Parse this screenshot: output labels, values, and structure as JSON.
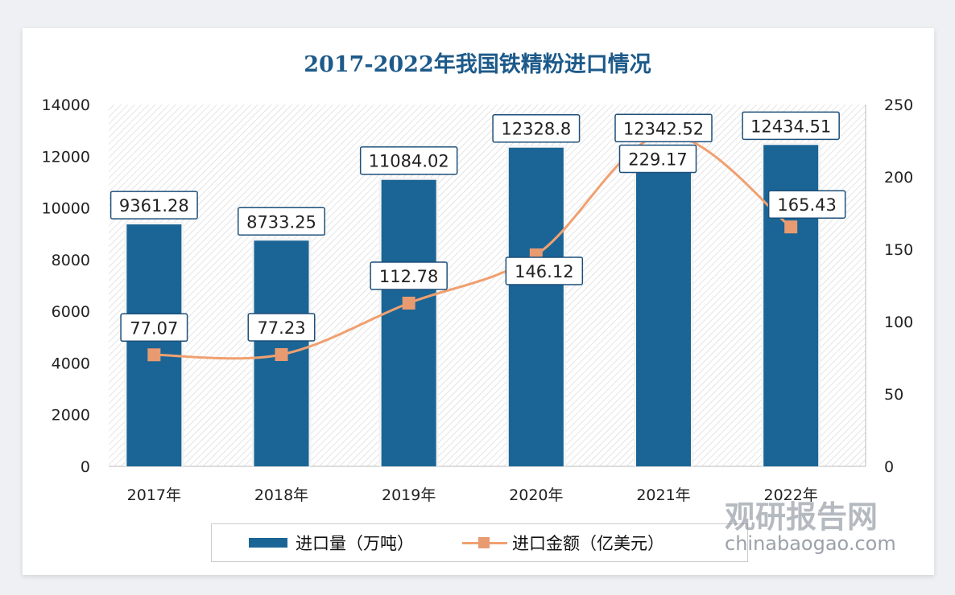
{
  "chart_data": {
    "type": "bar+line",
    "title": "2017-2022年我国铁精粉进口情况",
    "categories": [
      "2017年",
      "2018年",
      "2019年",
      "2020年",
      "2021年",
      "2022年"
    ],
    "series": [
      {
        "name": "进口量（万吨）",
        "type": "bar",
        "axis": "left",
        "values": [
          9361.28,
          8733.25,
          11084.02,
          12328.8,
          12342.52,
          12434.51
        ],
        "labels": [
          "9361.28",
          "8733.25",
          "11084.02",
          "12328.8",
          "12342.52",
          "12434.51"
        ]
      },
      {
        "name": "进口金额（亿美元）",
        "type": "line",
        "axis": "right",
        "values": [
          77.07,
          77.23,
          112.78,
          146.12,
          229.17,
          165.43
        ],
        "labels": [
          "77.07",
          "77.23",
          "112.78",
          "146.12",
          "229.17",
          "165.43"
        ]
      }
    ],
    "y_left": {
      "range": [
        0,
        14000
      ],
      "ticks": [
        "0",
        "2000",
        "4000",
        "6000",
        "8000",
        "10000",
        "12000",
        "14000"
      ]
    },
    "y_right": {
      "range": [
        0,
        250
      ],
      "ticks": [
        "0",
        "50",
        "100",
        "150",
        "200",
        "250"
      ]
    },
    "legend_position": "bottom",
    "colors": {
      "bar": "#1a6595",
      "line": "#f0a070",
      "marker": "#e89a70",
      "title": "#1d5a8a"
    }
  },
  "watermark": {
    "name": "观研报告网",
    "url": "chinabaogao.com"
  }
}
